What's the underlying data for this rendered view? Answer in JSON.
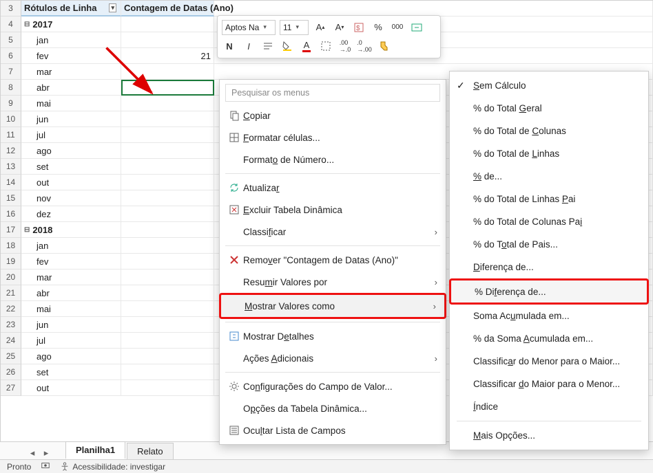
{
  "headers": {
    "rowLabels": "Rótulos de Linha",
    "countDates": "Contagem de Datas (Ano)"
  },
  "rowStart": 3,
  "rows": [
    {
      "n": 3,
      "type": "header"
    },
    {
      "n": 4,
      "type": "year",
      "label": "2017"
    },
    {
      "n": 5,
      "type": "month",
      "label": "jan"
    },
    {
      "n": 6,
      "type": "month",
      "label": "fev",
      "value": "21"
    },
    {
      "n": 7,
      "type": "month",
      "label": "mar"
    },
    {
      "n": 8,
      "type": "month",
      "label": "abr",
      "selected": true
    },
    {
      "n": 9,
      "type": "month",
      "label": "mai"
    },
    {
      "n": 10,
      "type": "month",
      "label": "jun"
    },
    {
      "n": 11,
      "type": "month",
      "label": "jul"
    },
    {
      "n": 12,
      "type": "month",
      "label": "ago"
    },
    {
      "n": 13,
      "type": "month",
      "label": "set"
    },
    {
      "n": 14,
      "type": "month",
      "label": "out"
    },
    {
      "n": 15,
      "type": "month",
      "label": "nov"
    },
    {
      "n": 16,
      "type": "month",
      "label": "dez"
    },
    {
      "n": 17,
      "type": "year",
      "label": "2018"
    },
    {
      "n": 18,
      "type": "month",
      "label": "jan"
    },
    {
      "n": 19,
      "type": "month",
      "label": "fev"
    },
    {
      "n": 20,
      "type": "month",
      "label": "mar"
    },
    {
      "n": 21,
      "type": "month",
      "label": "abr"
    },
    {
      "n": 22,
      "type": "month",
      "label": "mai"
    },
    {
      "n": 23,
      "type": "month",
      "label": "jun"
    },
    {
      "n": 24,
      "type": "month",
      "label": "jul"
    },
    {
      "n": 25,
      "type": "month",
      "label": "ago"
    },
    {
      "n": 26,
      "type": "month",
      "label": "set"
    },
    {
      "n": 27,
      "type": "month",
      "label": "out"
    }
  ],
  "miniToolbar": {
    "font": "Aptos Na",
    "size": "11"
  },
  "ctx": {
    "searchPlaceholder": "Pesquisar os menus",
    "items": [
      {
        "icon": "copy",
        "pre": "",
        "u": "C",
        "post": "opiar"
      },
      {
        "icon": "cells",
        "pre": "",
        "u": "F",
        "post": "ormatar células..."
      },
      {
        "icon": "",
        "pre": "Format",
        "u": "o",
        "post": " de Número..."
      },
      {
        "sep": true
      },
      {
        "icon": "refresh",
        "pre": "Atualiza",
        "u": "r",
        "post": ""
      },
      {
        "icon": "pivotdel",
        "pre": "",
        "u": "E",
        "post": "xcluir Tabela Dinâmica"
      },
      {
        "icon": "",
        "pre": "Classi",
        "u": "f",
        "post": "icar",
        "sub": true
      },
      {
        "sep": true
      },
      {
        "icon": "x",
        "pre": "Remo",
        "u": "v",
        "post": "er \"Contagem de Datas (Ano)\""
      },
      {
        "icon": "",
        "pre": "Resu",
        "u": "m",
        "post": "ir Valores por",
        "sub": true
      },
      {
        "icon": "",
        "pre": "",
        "u": "M",
        "post": "ostrar Valores como",
        "sub": true,
        "highlight": true
      },
      {
        "sep": true
      },
      {
        "icon": "expand",
        "pre": "Mostrar D",
        "u": "e",
        "post": "talhes"
      },
      {
        "icon": "",
        "pre": "Ações ",
        "u": "A",
        "post": "dicionais",
        "sub": true
      },
      {
        "sep": true
      },
      {
        "icon": "gear",
        "pre": "Co",
        "u": "n",
        "post": "figurações do Campo de Valor..."
      },
      {
        "icon": "",
        "pre": "O",
        "u": "p",
        "post": "ções da Tabela Dinâmica..."
      },
      {
        "icon": "list",
        "pre": "Ocu",
        "u": "l",
        "post": "tar Lista de Campos"
      }
    ]
  },
  "submenu": {
    "items": [
      {
        "checked": true,
        "pre": "",
        "u": "S",
        "post": "em Cálculo"
      },
      {
        "pre": "% do Total ",
        "u": "G",
        "post": "eral"
      },
      {
        "pre": "% do Total de ",
        "u": "C",
        "post": "olunas"
      },
      {
        "pre": "% do Total de ",
        "u": "L",
        "post": "inhas"
      },
      {
        "pre": "",
        "u": "%",
        "post": " de..."
      },
      {
        "pre": "% do Total de Linhas ",
        "u": "P",
        "post": "ai"
      },
      {
        "pre": "% do Total de Colunas Pa",
        "u": "i",
        "post": ""
      },
      {
        "pre": "% do T",
        "u": "o",
        "post": "tal de Pais..."
      },
      {
        "pre": "",
        "u": "D",
        "post": "iferença de..."
      },
      {
        "pre": "% Di",
        "u": "f",
        "post": "erença de...",
        "highlight": true
      },
      {
        "pre": "Soma Ac",
        "u": "u",
        "post": "mulada em..."
      },
      {
        "pre": "% da Soma ",
        "u": "A",
        "post": "cumulada em..."
      },
      {
        "pre": "Classific",
        "u": "a",
        "post": "r do Menor para o Maior..."
      },
      {
        "pre": "Classificar ",
        "u": "d",
        "post": "o Maior para o Menor..."
      },
      {
        "pre": "",
        "u": "Í",
        "post": "ndice"
      },
      {
        "sep": true
      },
      {
        "pre": "",
        "u": "M",
        "post": "ais Opções..."
      }
    ]
  },
  "tabs": {
    "active": "Planilha1",
    "other": "Relato"
  },
  "status": {
    "ready": "Pronto",
    "a11y": "Acessibilidade: investigar"
  },
  "colors": {
    "highlight": "#e11",
    "selection": "#1a7a3a",
    "headerBg": "#e6f0f9"
  }
}
